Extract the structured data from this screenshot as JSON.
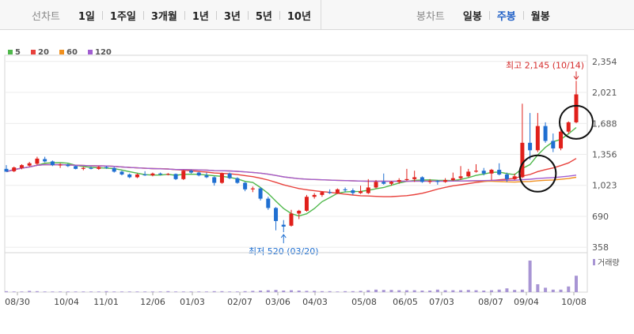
{
  "toolbar": {
    "line_chart_label": "선차트",
    "line_periods": [
      "1일",
      "1주일",
      "3개월",
      "1년",
      "3년",
      "5년",
      "10년"
    ],
    "candle_chart_label": "봉차트",
    "candle_periods": [
      "일봉",
      "주봉",
      "월봉"
    ],
    "candle_active_index": 1
  },
  "chart_data": {
    "type": "candlestick",
    "legend": [
      {
        "name": "5",
        "color": "#4fb84b"
      },
      {
        "name": "20",
        "color": "#e8413c"
      },
      {
        "name": "60",
        "color": "#f0901e"
      },
      {
        "name": "120",
        "color": "#a15ed1"
      }
    ],
    "y_ticks": [
      358,
      690,
      1023,
      1356,
      1688,
      2021,
      2354
    ],
    "ylim": [
      300,
      2420
    ],
    "x_ticks": [
      "08/30",
      "10/04",
      "11/01",
      "12/06",
      "01/03",
      "02/07",
      "03/06",
      "04/03",
      "05/08",
      "06/05",
      "07/03",
      "08/07",
      "09/04",
      "10/08"
    ],
    "volume_label": "거래량",
    "annotations": {
      "high": {
        "text": "최고 2,145 (10/14)",
        "value": 2145
      },
      "low": {
        "text": "최저 520 (03/20)",
        "value": 520
      }
    },
    "colors": {
      "up": "#e0201b",
      "down": "#1f6fd1",
      "volume": "#a895d4"
    },
    "candles": [
      [
        1200,
        1240,
        1170,
        1170
      ],
      [
        1175,
        1225,
        1165,
        1215
      ],
      [
        1210,
        1250,
        1195,
        1240
      ],
      [
        1235,
        1275,
        1225,
        1260
      ],
      [
        1255,
        1330,
        1240,
        1310
      ],
      [
        1305,
        1330,
        1270,
        1280
      ],
      [
        1280,
        1290,
        1230,
        1240
      ],
      [
        1240,
        1260,
        1210,
        1245
      ],
      [
        1245,
        1255,
        1220,
        1230
      ],
      [
        1230,
        1235,
        1195,
        1200
      ],
      [
        1200,
        1220,
        1185,
        1210
      ],
      [
        1210,
        1225,
        1195,
        1200
      ],
      [
        1200,
        1230,
        1190,
        1220
      ],
      [
        1220,
        1230,
        1200,
        1210
      ],
      [
        1210,
        1220,
        1160,
        1170
      ],
      [
        1170,
        1180,
        1130,
        1140
      ],
      [
        1140,
        1150,
        1100,
        1110
      ],
      [
        1110,
        1150,
        1100,
        1140
      ],
      [
        1140,
        1175,
        1125,
        1130
      ],
      [
        1130,
        1160,
        1120,
        1150
      ],
      [
        1150,
        1160,
        1130,
        1140
      ],
      [
        1140,
        1155,
        1130,
        1145
      ],
      [
        1145,
        1150,
        1080,
        1090
      ],
      [
        1090,
        1190,
        1080,
        1180
      ],
      [
        1180,
        1190,
        1150,
        1160
      ],
      [
        1160,
        1170,
        1120,
        1130
      ],
      [
        1130,
        1160,
        1100,
        1110
      ],
      [
        1110,
        1120,
        1020,
        1050
      ],
      [
        1050,
        1160,
        1040,
        1150
      ],
      [
        1150,
        1160,
        1090,
        1100
      ],
      [
        1100,
        1110,
        1040,
        1050
      ],
      [
        1050,
        1060,
        960,
        980
      ],
      [
        980,
        1010,
        950,
        990
      ],
      [
        990,
        1000,
        860,
        880
      ],
      [
        880,
        900,
        760,
        780
      ],
      [
        780,
        790,
        540,
        640
      ],
      [
        600,
        650,
        520,
        580
      ],
      [
        590,
        760,
        580,
        720
      ],
      [
        720,
        760,
        660,
        750
      ],
      [
        750,
        920,
        740,
        900
      ],
      [
        900,
        940,
        880,
        920
      ],
      [
        920,
        960,
        900,
        950
      ],
      [
        950,
        980,
        930,
        940
      ],
      [
        940,
        990,
        930,
        980
      ],
      [
        980,
        1000,
        950,
        970
      ],
      [
        970,
        990,
        920,
        940
      ],
      [
        940,
        1020,
        930,
        960
      ],
      [
        940,
        1090,
        930,
        1000
      ],
      [
        1000,
        1080,
        990,
        1060
      ],
      [
        1060,
        1150,
        1030,
        1040
      ],
      [
        1040,
        1070,
        1020,
        1060
      ],
      [
        1060,
        1100,
        1040,
        1080
      ],
      [
        1080,
        1200,
        1070,
        1090
      ],
      [
        1090,
        1180,
        1060,
        1110
      ],
      [
        1110,
        1120,
        1050,
        1060
      ],
      [
        1060,
        1090,
        1040,
        1070
      ],
      [
        1070,
        1080,
        1030,
        1060
      ],
      [
        1060,
        1100,
        1050,
        1080
      ],
      [
        1080,
        1160,
        1070,
        1100
      ],
      [
        1100,
        1230,
        1080,
        1120
      ],
      [
        1120,
        1200,
        1110,
        1170
      ],
      [
        1170,
        1250,
        1160,
        1180
      ],
      [
        1180,
        1210,
        1130,
        1150
      ],
      [
        1150,
        1200,
        1080,
        1190
      ],
      [
        1190,
        1260,
        1130,
        1140
      ],
      [
        1140,
        1160,
        1060,
        1090
      ],
      [
        1090,
        1150,
        1080,
        1120
      ],
      [
        1110,
        1900,
        1100,
        1480
      ],
      [
        1480,
        1800,
        1300,
        1400
      ],
      [
        1400,
        1800,
        1380,
        1660
      ],
      [
        1660,
        1700,
        1480,
        1500
      ],
      [
        1500,
        1580,
        1380,
        1420
      ],
      [
        1420,
        1620,
        1400,
        1600
      ],
      [
        1600,
        1710,
        1580,
        1700
      ],
      [
        1700,
        2145,
        1690,
        2000
      ]
    ],
    "volume": [
      3,
      2,
      2,
      4,
      3,
      2,
      2,
      2,
      2,
      2,
      2,
      2,
      2,
      3,
      2,
      2,
      2,
      2,
      2,
      2,
      2,
      3,
      2,
      2,
      2,
      2,
      2,
      3,
      3,
      2,
      2,
      3,
      4,
      5,
      6,
      7,
      5,
      6,
      5,
      4,
      4,
      3,
      3,
      2,
      3,
      3,
      4,
      6,
      8,
      7,
      7,
      6,
      6,
      6,
      5,
      5,
      8,
      6,
      6,
      6,
      7,
      6,
      5,
      6,
      8,
      12,
      7,
      8,
      100,
      25,
      14,
      8,
      8,
      18,
      52
    ]
  }
}
